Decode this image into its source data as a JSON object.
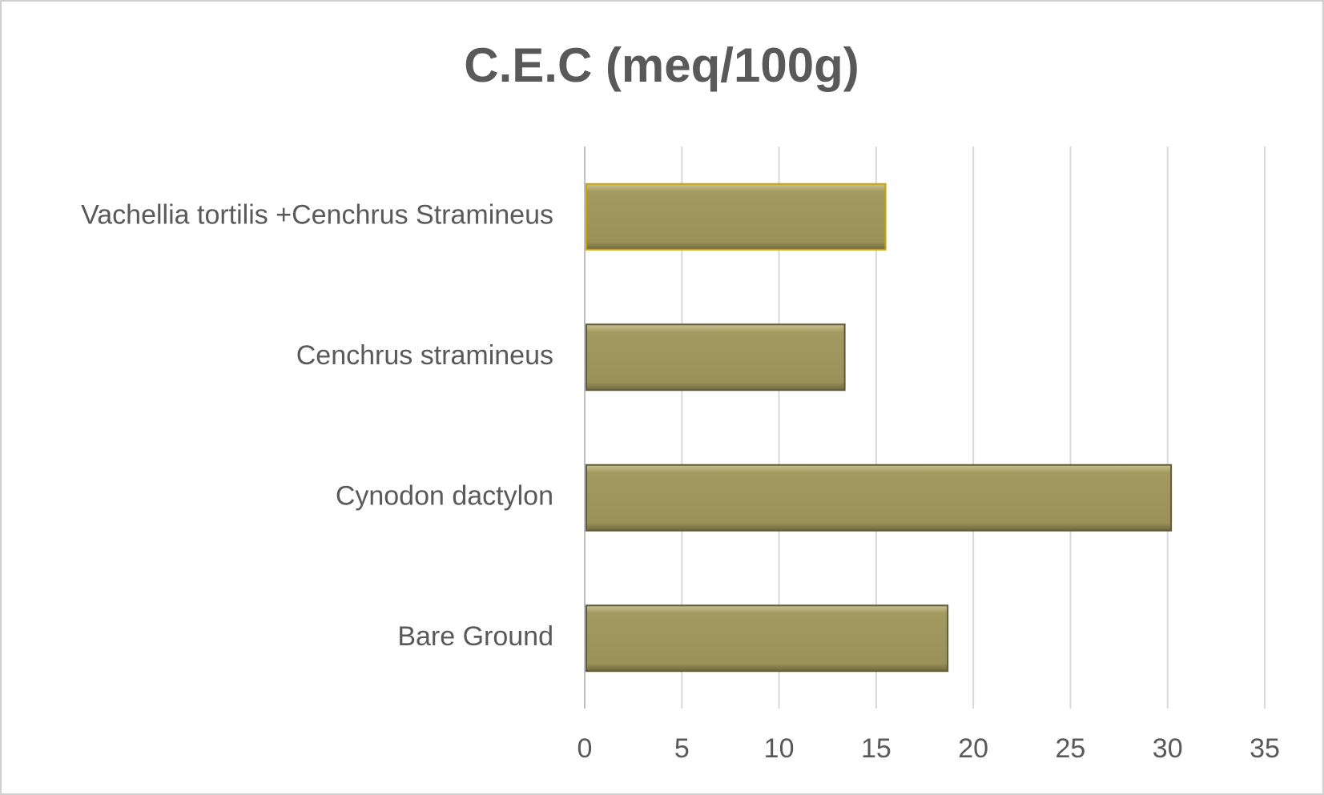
{
  "chart_data": {
    "type": "bar",
    "orientation": "horizontal",
    "title": "C.E.C (meq/100g)",
    "categories": [
      "Vachellia tortilis +Cenchrus Stramineus",
      "Cenchrus stramineus",
      "Cynodon dactylon",
      "Bare Ground"
    ],
    "values": [
      15.4,
      13.3,
      30.1,
      18.6
    ],
    "color": "#9e955c",
    "xlim": [
      0,
      35
    ],
    "xticks": [
      0,
      5,
      10,
      15,
      20,
      25,
      30,
      35
    ],
    "grid": true
  }
}
